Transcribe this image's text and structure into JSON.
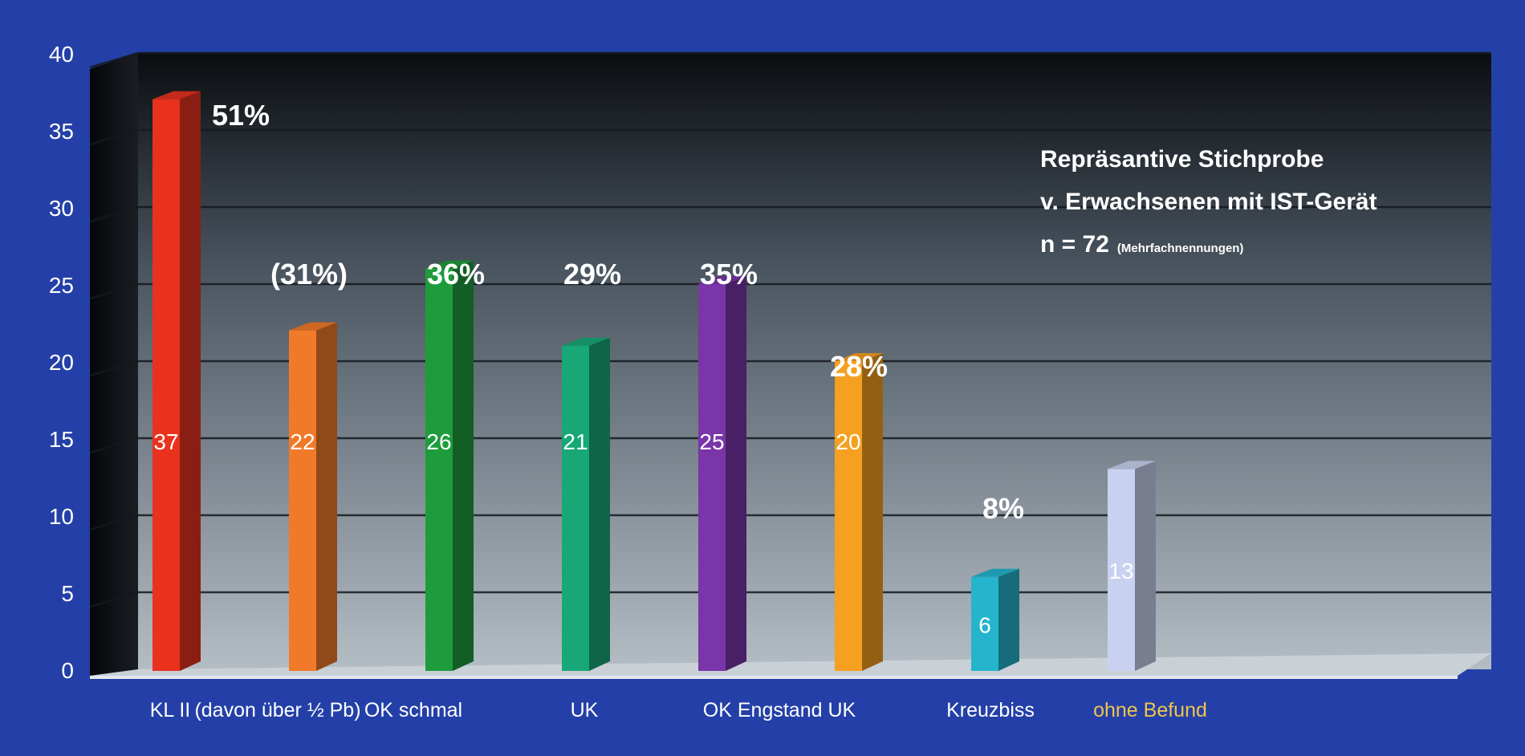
{
  "chart_data": {
    "type": "bar",
    "title": "",
    "xlabel": "",
    "ylabel": "",
    "ylim": [
      0,
      40
    ],
    "yticks": [
      "0",
      "5",
      "10",
      "15",
      "20",
      "25",
      "30",
      "35",
      "40"
    ],
    "grid": true,
    "categories": [
      "KL II",
      "(davon über ½ Pb)",
      "OK schmal",
      "UK",
      "OK Engstand UK",
      "",
      "Kreuzbiss",
      "ohne Befund"
    ],
    "category_label_colors": [
      "#ffffff",
      "#ffffff",
      "#ffffff",
      "#ffffff",
      "#ffffff",
      "#ffffff",
      "#ffffff",
      "#f0c44a"
    ],
    "values": [
      37,
      22,
      26,
      21,
      25,
      20,
      6,
      13
    ],
    "value_labels": [
      "37",
      "22",
      "26",
      "21",
      "25",
      "20",
      "6",
      "13"
    ],
    "percent_labels": [
      "51%",
      "(31%)",
      "36%",
      "29%",
      "35%",
      "28%",
      "8%",
      ""
    ],
    "colors": [
      "#e8321e",
      "#f07a2a",
      "#1e9c3c",
      "#18a878",
      "#7a35a8",
      "#f5a020",
      "#24b4cc",
      "#c8d2f0"
    ],
    "annotation": {
      "line1": "Repräsantive Stichprobe",
      "line2": "v. Erwachsenen mit IST-Gerät",
      "line3_main": "n = 72",
      "line3_small": "(Mehrfachnennungen)"
    }
  }
}
